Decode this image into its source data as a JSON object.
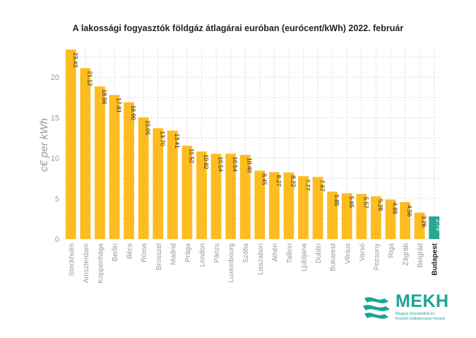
{
  "chart_data": {
    "type": "bar",
    "title": "A lakossági fogyasztók földgáz átlagárai euróban (eurócent/kWh) 2022. február",
    "xlabel": "",
    "ylabel": "c€ per kWh",
    "ylim": [
      0,
      23.43
    ],
    "yticks": [
      0,
      5,
      10,
      15,
      20
    ],
    "grid": true,
    "legend": "none",
    "categories": [
      "Stockholm",
      "Amszterdam",
      "Koppenhága",
      "Berlin",
      "Bécs",
      "Róma",
      "Brüsszel",
      "Madrid",
      "Prága",
      "London",
      "Párizs",
      "Luxembourg",
      "Szófia",
      "Lisszabon",
      "Athén",
      "Tallinn",
      "Ljubljana",
      "Dublin",
      "Bukarest",
      "Vilnius",
      "Varsó",
      "Pozsony",
      "Riga",
      "Zágráb",
      "Belgrád",
      "Budapest"
    ],
    "values": [
      23.43,
      21.12,
      18.86,
      17.81,
      16.9,
      15.05,
      13.7,
      13.41,
      11.52,
      10.82,
      10.54,
      10.54,
      10.4,
      8.45,
      8.27,
      8.22,
      7.77,
      7.67,
      5.85,
      5.65,
      5.57,
      5.28,
      4.88,
      4.56,
      3.26,
      2.79
    ],
    "value_labels": [
      "23.43",
      "21.12",
      "18.86",
      "17.81",
      "16.90",
      "15.05",
      "13.70",
      "13.41",
      "11.52",
      "10.82",
      "10.54",
      "10.54",
      "10.40",
      "8.45",
      "8.27",
      "8.22",
      "7.77",
      "7.67",
      "5.85",
      "5.65",
      "5.57",
      "5.28",
      "4.88",
      "4.56",
      "3.26",
      "2.79"
    ],
    "highlight_category": "Budapest",
    "colors": {
      "bar": "#fdbd21",
      "highlight": "#27a88f",
      "grid": "#cfcfcf",
      "axis_text": "#999999",
      "label_text": "#222222",
      "highlight_label_text": "#ffffff"
    }
  },
  "logo": {
    "word": "MEKH",
    "subtitle_line1": "Magyar Energetikai és",
    "subtitle_line2": "Közmű-szabályozási Hivatal",
    "color": "#1aa595"
  }
}
